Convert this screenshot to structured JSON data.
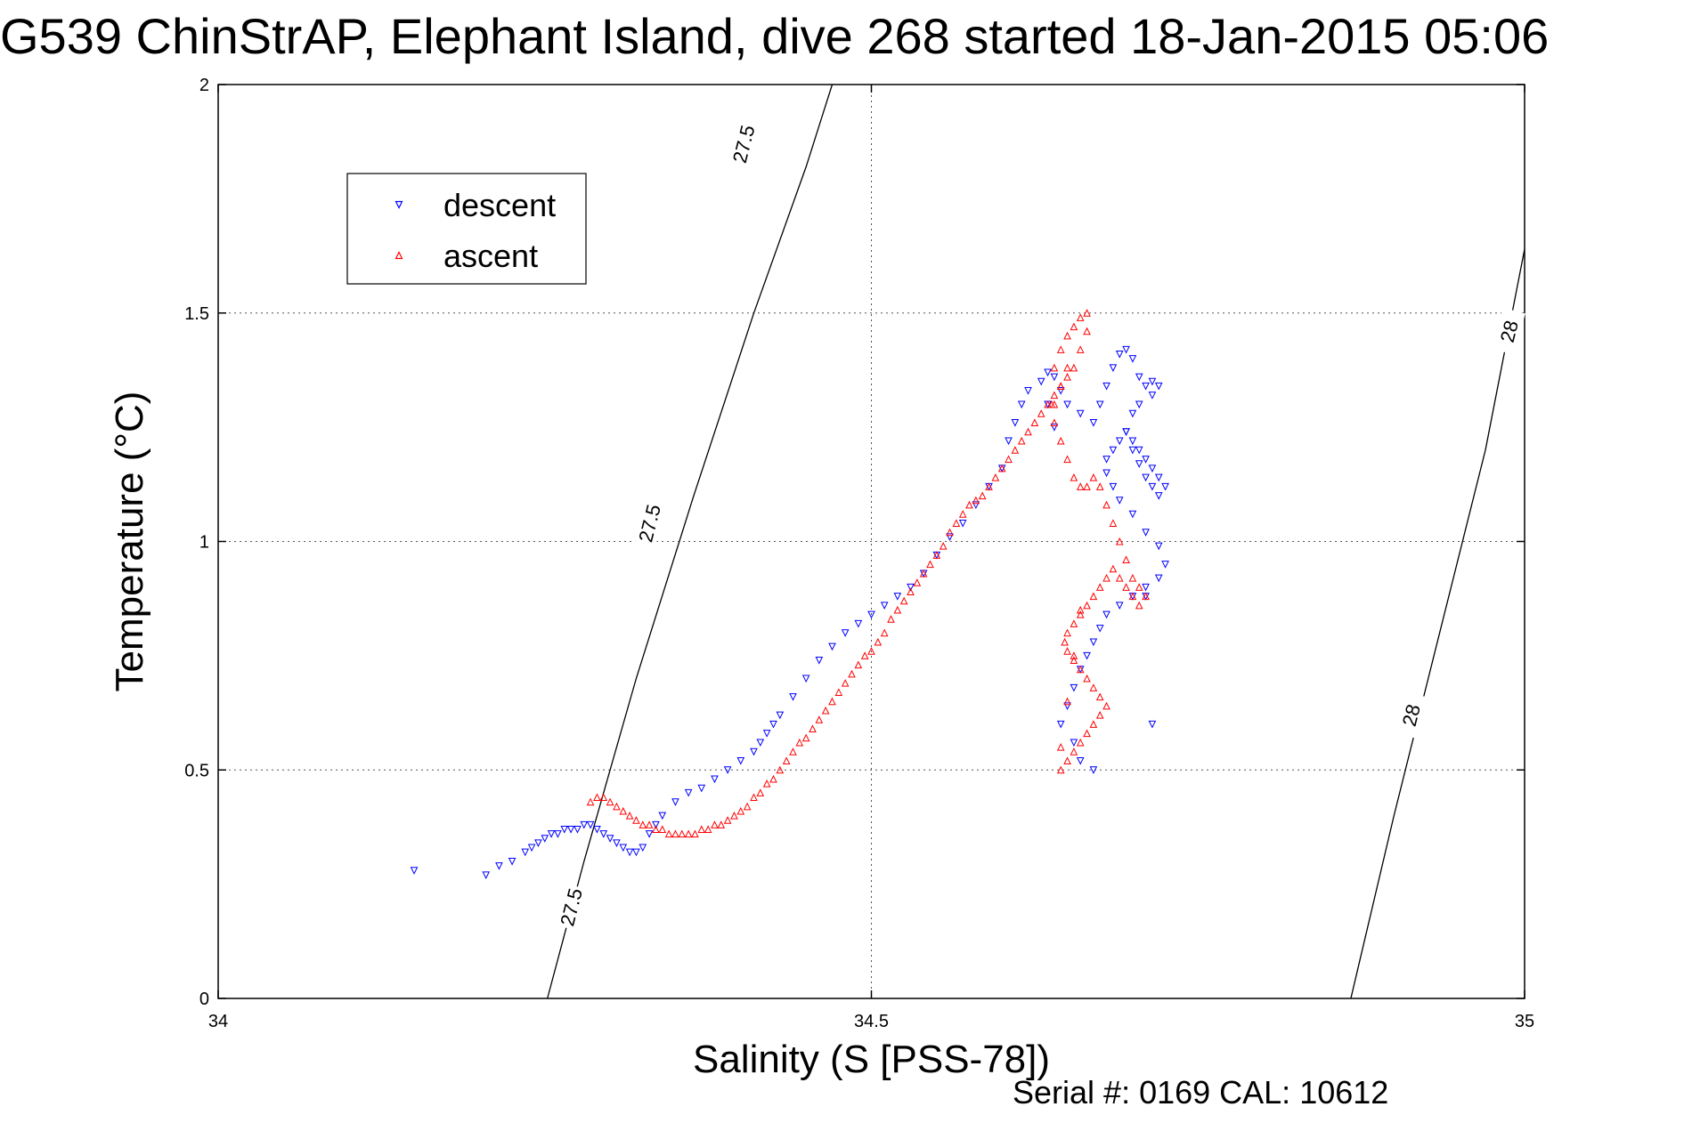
{
  "chart_data": {
    "type": "scatter",
    "title": "G539 ChinStrAP, Elephant Island, dive 268 started 18-Jan-2015 05:06",
    "xlabel": "Salinity (S [PSS-78])",
    "ylabel": "Temperature (°C)",
    "footer": "Serial #: 0169 CAL: 10612",
    "xlim": [
      34,
      35
    ],
    "ylim": [
      0,
      2
    ],
    "x_ticks": [
      34,
      34.5,
      35
    ],
    "x_tick_labels": [
      "34",
      "34.5",
      "35"
    ],
    "y_ticks": [
      0,
      0.5,
      1,
      1.5,
      2
    ],
    "y_tick_labels": [
      "0",
      "0.5",
      "1",
      "1.5",
      "2"
    ],
    "grid": true,
    "legend_position": "top-left",
    "series": [
      {
        "name": "descent",
        "color": "#0000ff",
        "marker": "triangle-down",
        "x": [
          34.15,
          34.205,
          34.215,
          34.225,
          34.235,
          34.24,
          34.245,
          34.25,
          34.255,
          34.26,
          34.265,
          34.27,
          34.275,
          34.28,
          34.285,
          34.29,
          34.295,
          34.3,
          34.305,
          34.31,
          34.315,
          34.32,
          34.325,
          34.33,
          34.335,
          34.34,
          34.35,
          34.36,
          34.37,
          34.38,
          34.39,
          34.4,
          34.41,
          34.415,
          34.42,
          34.425,
          34.43,
          34.44,
          34.45,
          34.46,
          34.47,
          34.48,
          34.49,
          34.5,
          34.51,
          34.52,
          34.53,
          34.54,
          34.55,
          34.56,
          34.57,
          34.58,
          34.59,
          34.6,
          34.605,
          34.61,
          34.615,
          34.62,
          34.63,
          34.635,
          34.64,
          34.645,
          34.65,
          34.66,
          34.67,
          34.675,
          34.68,
          34.685,
          34.69,
          34.695,
          34.7,
          34.705,
          34.71,
          34.715,
          34.72,
          34.715,
          34.705,
          34.7,
          34.695,
          34.7,
          34.705,
          34.71,
          34.715,
          34.72,
          34.725,
          34.72,
          34.715,
          34.71,
          34.705,
          34.7,
          34.695,
          34.69,
          34.685,
          34.68,
          34.68,
          34.685,
          34.69,
          34.7,
          34.71,
          34.72,
          34.725,
          34.72,
          34.71,
          34.7,
          34.69,
          34.68,
          34.675,
          34.67,
          34.665,
          34.66,
          34.655,
          34.65,
          34.645,
          34.655,
          34.66,
          34.67,
          34.715,
          34.71,
          34.64,
          34.635
        ],
        "y": [
          0.28,
          0.27,
          0.29,
          0.3,
          0.32,
          0.33,
          0.34,
          0.35,
          0.36,
          0.36,
          0.37,
          0.37,
          0.37,
          0.38,
          0.38,
          0.37,
          0.36,
          0.35,
          0.34,
          0.33,
          0.32,
          0.32,
          0.33,
          0.36,
          0.38,
          0.4,
          0.43,
          0.45,
          0.46,
          0.48,
          0.5,
          0.52,
          0.54,
          0.56,
          0.58,
          0.6,
          0.62,
          0.66,
          0.7,
          0.74,
          0.77,
          0.8,
          0.82,
          0.84,
          0.86,
          0.88,
          0.9,
          0.93,
          0.97,
          1.01,
          1.04,
          1.08,
          1.12,
          1.16,
          1.22,
          1.26,
          1.3,
          1.33,
          1.35,
          1.37,
          1.36,
          1.33,
          1.3,
          1.28,
          1.26,
          1.3,
          1.34,
          1.38,
          1.41,
          1.42,
          1.4,
          1.36,
          1.34,
          1.35,
          1.34,
          1.32,
          1.3,
          1.28,
          1.24,
          1.2,
          1.17,
          1.14,
          1.12,
          1.1,
          1.12,
          1.14,
          1.16,
          1.18,
          1.2,
          1.22,
          1.24,
          1.22,
          1.2,
          1.18,
          1.15,
          1.12,
          1.09,
          1.06,
          1.02,
          0.99,
          0.95,
          0.92,
          0.9,
          0.88,
          0.86,
          0.84,
          0.81,
          0.78,
          0.75,
          0.72,
          0.68,
          0.64,
          0.6,
          0.56,
          0.52,
          0.5,
          0.6,
          0.88,
          1.25,
          1.3
        ]
      },
      {
        "name": "ascent",
        "color": "#ff0000",
        "marker": "triangle-up",
        "x": [
          34.285,
          34.29,
          34.295,
          34.3,
          34.305,
          34.31,
          34.315,
          34.32,
          34.325,
          34.33,
          34.335,
          34.34,
          34.345,
          34.35,
          34.355,
          34.36,
          34.365,
          34.37,
          34.375,
          34.38,
          34.385,
          34.39,
          34.395,
          34.4,
          34.405,
          34.41,
          34.415,
          34.42,
          34.425,
          34.43,
          34.435,
          34.44,
          34.445,
          34.45,
          34.455,
          34.46,
          34.465,
          34.47,
          34.475,
          34.48,
          34.485,
          34.49,
          34.495,
          34.5,
          34.505,
          34.51,
          34.515,
          34.52,
          34.525,
          34.53,
          34.535,
          34.54,
          34.545,
          34.55,
          34.555,
          34.56,
          34.565,
          34.57,
          34.575,
          34.58,
          34.585,
          34.59,
          34.595,
          34.6,
          34.605,
          34.61,
          34.615,
          34.62,
          34.625,
          34.63,
          34.635,
          34.64,
          34.645,
          34.65,
          34.655,
          34.66,
          34.665,
          34.665,
          34.66,
          34.655,
          34.65,
          34.645,
          34.64,
          34.638,
          34.64,
          34.645,
          34.65,
          34.655,
          34.66,
          34.665,
          34.67,
          34.675,
          34.68,
          34.685,
          34.69,
          34.695,
          34.7,
          34.705,
          34.71,
          34.705,
          34.7,
          34.695,
          34.69,
          34.685,
          34.68,
          34.675,
          34.67,
          34.665,
          34.66,
          34.655,
          34.65,
          34.648,
          34.65,
          34.655,
          34.66,
          34.665,
          34.67,
          34.675,
          34.68,
          34.675,
          34.67,
          34.665,
          34.66,
          34.655,
          34.65,
          34.645,
          34.645,
          34.65,
          34.655,
          34.66,
          34.64,
          34.645,
          34.65
        ],
        "y": [
          0.43,
          0.44,
          0.44,
          0.43,
          0.42,
          0.41,
          0.4,
          0.39,
          0.38,
          0.38,
          0.37,
          0.37,
          0.36,
          0.36,
          0.36,
          0.36,
          0.36,
          0.37,
          0.37,
          0.38,
          0.38,
          0.39,
          0.4,
          0.41,
          0.42,
          0.44,
          0.45,
          0.47,
          0.48,
          0.5,
          0.52,
          0.54,
          0.56,
          0.57,
          0.59,
          0.61,
          0.63,
          0.65,
          0.67,
          0.69,
          0.71,
          0.73,
          0.75,
          0.76,
          0.78,
          0.8,
          0.83,
          0.85,
          0.87,
          0.89,
          0.91,
          0.93,
          0.95,
          0.97,
          0.99,
          1.02,
          1.04,
          1.06,
          1.08,
          1.09,
          1.1,
          1.12,
          1.14,
          1.16,
          1.18,
          1.2,
          1.22,
          1.24,
          1.26,
          1.28,
          1.3,
          1.32,
          1.34,
          1.36,
          1.38,
          1.42,
          1.46,
          1.5,
          1.49,
          1.47,
          1.45,
          1.42,
          1.38,
          1.3,
          1.26,
          1.22,
          1.18,
          1.14,
          1.12,
          1.12,
          1.14,
          1.12,
          1.08,
          1.04,
          1.0,
          0.96,
          0.92,
          0.9,
          0.88,
          0.86,
          0.88,
          0.9,
          0.92,
          0.94,
          0.92,
          0.9,
          0.88,
          0.86,
          0.84,
          0.82,
          0.8,
          0.78,
          0.76,
          0.74,
          0.72,
          0.7,
          0.68,
          0.66,
          0.64,
          0.62,
          0.6,
          0.58,
          0.56,
          0.54,
          0.52,
          0.5,
          0.55,
          0.65,
          0.75,
          0.85,
          1.3,
          1.34,
          1.38
        ]
      }
    ],
    "contours": [
      {
        "label": "27.5",
        "points": [
          [
            34.252,
            0
          ],
          [
            34.28,
            0.3
          ],
          [
            34.32,
            0.7
          ],
          [
            34.364,
            1.1
          ],
          [
            34.41,
            1.5
          ],
          [
            34.45,
            1.82
          ],
          [
            34.47,
            2
          ]
        ]
      },
      {
        "label": "28",
        "points": [
          [
            34.867,
            0
          ],
          [
            34.9,
            0.4
          ],
          [
            34.935,
            0.8
          ],
          [
            34.97,
            1.2
          ],
          [
            35,
            1.64
          ]
        ]
      }
    ],
    "contour_labels": [
      {
        "text": "27.5",
        "at": [
          34.27,
          0.2
        ],
        "angle": -76
      },
      {
        "text": "27.5",
        "at": [
          34.33,
          1.04
        ],
        "angle": -76
      },
      {
        "text": "27.5",
        "at": [
          34.402,
          1.87
        ],
        "angle": -76
      },
      {
        "text": "28",
        "at": [
          34.913,
          0.62
        ],
        "angle": -76
      },
      {
        "text": "28",
        "at": [
          34.988,
          1.46
        ],
        "angle": -76
      }
    ]
  }
}
